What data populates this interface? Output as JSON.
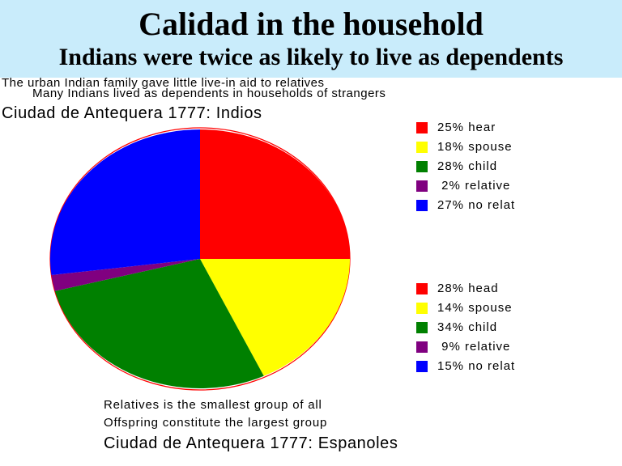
{
  "title": "Calidad in the household",
  "subtitle": "Indians were twice as likely to live as dependents",
  "notes": [
    "The urban Indian family gave little live-in aid to relatives",
    "Many Indians lived as dependents in households of strangers"
  ],
  "bottom_notes": [
    "Relatives is the smallest group of all",
    "Offspring constitute the largest group"
  ],
  "colors": {
    "banner": "#c9ecfb",
    "red": "#ff0000",
    "yellow": "#ffff00",
    "green": "#008000",
    "purple": "#800080",
    "blue": "#0000ff"
  },
  "chart_data": [
    {
      "type": "pie",
      "title": "Ciudad de Antequera 1777: Indios",
      "slices": [
        {
          "label": "25% hear",
          "value": 25,
          "color": "#ff0000"
        },
        {
          "label": "18% spouse",
          "value": 18,
          "color": "#ffff00"
        },
        {
          "label": "28% child",
          "value": 28,
          "color": "#008000"
        },
        {
          "label": " 2% relative",
          "value": 2,
          "color": "#800080"
        },
        {
          "label": "27% no relat",
          "value": 27,
          "color": "#0000ff"
        }
      ]
    },
    {
      "type": "pie",
      "title": "Ciudad de Antequera 1777: Espanoles",
      "slices": [
        {
          "label": "28% head",
          "value": 28,
          "color": "#ff0000"
        },
        {
          "label": "14% spouse",
          "value": 14,
          "color": "#ffff00"
        },
        {
          "label": "34% child",
          "value": 34,
          "color": "#008000"
        },
        {
          "label": " 9% relative",
          "value": 9,
          "color": "#800080"
        },
        {
          "label": "15% no relat",
          "value": 15,
          "color": "#0000ff"
        }
      ]
    }
  ]
}
